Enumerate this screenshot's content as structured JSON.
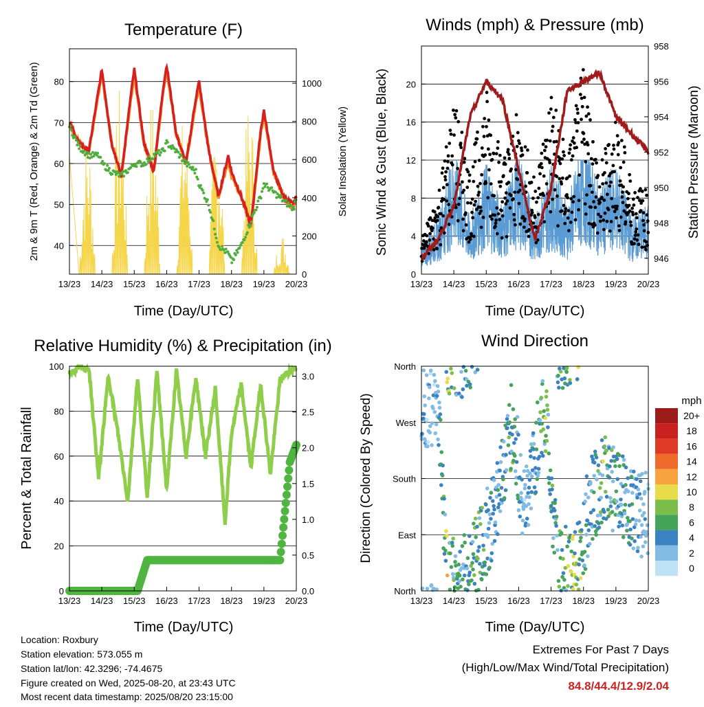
{
  "colors": {
    "t2m": "#d62020",
    "t9m": "#f28c28",
    "td": "#4fad3e",
    "solar": "#f5d64a",
    "gust": "#000000",
    "wind": "#5a9bd4",
    "pressure": "#a01c1c",
    "rh": "#8fce4a",
    "precip": "#4fb540",
    "extremes": "#cc2222"
  },
  "x_ticks": [
    "13/23",
    "14/23",
    "15/23",
    "16/23",
    "17/23",
    "18/23",
    "19/23",
    "20/23"
  ],
  "x_axis_title": "Time (Day/UTC)",
  "panels": {
    "temp": {
      "title": "Temperature (F)",
      "ylabel_left": "2m & 9m T (Red, Orange) & 2m Td (Green)",
      "ylabel_right": "Solar Insolation (Yellow)",
      "left_ticks": [
        "40",
        "50",
        "60",
        "70",
        "80"
      ],
      "right_ticks": [
        "0",
        "200",
        "400",
        "600",
        "800",
        "1000"
      ]
    },
    "wind": {
      "title": "Winds (mph) & Pressure (mb)",
      "ylabel_left": "Sonic Wind & Gust (Blue, Black)",
      "ylabel_right": "Station Pressure (Maroon)",
      "left_ticks": [
        "0",
        "4",
        "8",
        "12",
        "16",
        "20"
      ],
      "right_ticks": [
        "946",
        "948",
        "950",
        "952",
        "954",
        "956",
        "958"
      ]
    },
    "rh": {
      "title": "Relative Humidity (%) & Precipitation (in)",
      "ylabel_left": "Percent & Total Rainfall",
      "left_ticks": [
        "0",
        "20",
        "40",
        "60",
        "80",
        "100"
      ],
      "right_ticks": [
        "0.0",
        "0.5",
        "1.0",
        "1.5",
        "2.0",
        "2.5",
        "3.0"
      ]
    },
    "dir": {
      "title": "Wind Direction",
      "ylabel_left": "Direction (Colored By Speed)",
      "left_ticks": [
        "North",
        "East",
        "South",
        "West",
        "North"
      ],
      "legend_title": "mph",
      "legend_labels": [
        "20+",
        "18",
        "16",
        "14",
        "12",
        "10",
        "8",
        "6",
        "4",
        "2",
        "0"
      ],
      "legend_colors": [
        "#9e1b1b",
        "#c8211f",
        "#de3b26",
        "#f06b2b",
        "#f9a340",
        "#e8dc4a",
        "#7bbf4a",
        "#45a45a",
        "#3b82c0",
        "#82bbe4",
        "#bfe3f6"
      ]
    }
  },
  "chart_data": [
    {
      "type": "line",
      "title": "Temperature (F)",
      "xlabel": "Time (Day/UTC)",
      "ylabel": "2m & 9m T (Red, Orange) & 2m Td (Green)",
      "ylabel_right": "Solar Insolation (Yellow)",
      "ylim": [
        33,
        88
      ],
      "y2lim": [
        0,
        1180
      ],
      "x": [
        13.0,
        13.3,
        13.6,
        13.9,
        14.0,
        14.3,
        14.6,
        14.9,
        15.0,
        15.3,
        15.6,
        15.9,
        16.0,
        16.3,
        16.6,
        16.9,
        17.0,
        17.3,
        17.6,
        17.9,
        18.0,
        18.3,
        18.6,
        18.9,
        19.0,
        19.3,
        19.6,
        19.9,
        20.0
      ],
      "series": [
        {
          "name": "2m T",
          "axis": "left",
          "values": [
            70,
            65,
            63,
            78,
            83,
            65,
            57,
            77,
            83,
            65,
            58,
            79,
            84,
            67,
            60,
            76,
            80,
            63,
            52,
            62,
            58,
            52,
            45,
            68,
            73,
            58,
            52,
            50,
            52
          ]
        },
        {
          "name": "9m T",
          "axis": "left",
          "values": [
            70,
            65,
            63,
            77,
            82,
            65,
            57,
            76,
            82,
            65,
            58,
            78,
            83,
            67,
            60,
            75,
            79,
            63,
            52,
            61,
            57,
            52,
            45,
            67,
            72,
            58,
            52,
            49,
            52
          ]
        },
        {
          "name": "2m Td",
          "axis": "left",
          "values": [
            69,
            64,
            62,
            62,
            60,
            58,
            57,
            59,
            60,
            60,
            62,
            63,
            65,
            63,
            60,
            58,
            55,
            50,
            40,
            38,
            36,
            40,
            46,
            52,
            55,
            53,
            51,
            49,
            51
          ]
        },
        {
          "name": "Solar Insolation",
          "axis": "right",
          "values": [
            600,
            0,
            900,
            800,
            0,
            0,
            1000,
            900,
            0,
            0,
            950,
            700,
            0,
            0,
            900,
            850,
            0,
            0,
            800,
            600,
            0,
            0,
            0,
            900,
            0,
            0,
            0,
            200,
            0
          ]
        }
      ]
    },
    {
      "type": "line",
      "title": "Winds (mph) & Pressure (mb)",
      "xlabel": "Time (Day/UTC)",
      "ylabel": "Sonic Wind & Gust (Blue, Black)",
      "ylabel_right": "Station Pressure (Maroon)",
      "ylim": [
        0,
        24
      ],
      "y2lim": [
        945.1,
        958.0
      ],
      "x": [
        13.0,
        13.5,
        14.0,
        14.5,
        15.0,
        15.5,
        16.0,
        16.5,
        17.0,
        17.5,
        18.0,
        18.5,
        19.0,
        19.5,
        20.0
      ],
      "series": [
        {
          "name": "Sonic Wind",
          "axis": "left",
          "values": [
            2,
            4,
            9,
            4,
            8,
            5,
            9,
            4,
            8,
            5,
            10,
            6,
            8,
            4,
            5
          ]
        },
        {
          "name": "Gust",
          "axis": "left",
          "values": [
            3,
            7,
            15,
            9,
            16,
            10,
            14,
            8,
            16,
            10,
            18,
            9,
            14,
            8,
            7
          ]
        },
        {
          "name": "Station Pressure",
          "axis": "right",
          "values": [
            946,
            947,
            949,
            954,
            956,
            955,
            951,
            947,
            950,
            955.5,
            956,
            956.5,
            954,
            953,
            952
          ]
        }
      ]
    },
    {
      "type": "line",
      "title": "Relative Humidity (%) & Precipitation (in)",
      "xlabel": "Time (Day/UTC)",
      "ylabel": "Percent & Total Rainfall",
      "ylim": [
        0,
        100
      ],
      "y2lim": [
        0,
        3.14
      ],
      "x": [
        13.0,
        13.3,
        13.6,
        13.9,
        14.2,
        14.5,
        14.8,
        15.1,
        15.4,
        15.7,
        16.0,
        16.3,
        16.6,
        16.9,
        17.2,
        17.5,
        17.8,
        18.0,
        18.3,
        18.6,
        18.9,
        19.2,
        19.5,
        19.8,
        20.0
      ],
      "series": [
        {
          "name": "Relative Humidity",
          "axis": "left",
          "values": [
            97,
            99,
            99,
            50,
            96,
            70,
            40,
            95,
            42,
            98,
            45,
            98,
            60,
            95,
            60,
            90,
            30,
            70,
            92,
            55,
            92,
            52,
            94,
            98,
            99
          ]
        },
        {
          "name": "Total Rainfall",
          "axis": "right",
          "values": [
            0,
            0,
            0,
            0,
            0,
            0,
            0,
            0,
            0.43,
            0.43,
            0.43,
            0.43,
            0.43,
            0.43,
            0.43,
            0.43,
            0.43,
            0.43,
            0.43,
            0.43,
            0.43,
            0.43,
            0.43,
            1.8,
            2.04
          ]
        }
      ]
    },
    {
      "type": "scatter",
      "title": "Wind Direction",
      "xlabel": "Time (Day/UTC)",
      "ylabel": "Direction (Colored By Speed)",
      "yticks": [
        "North",
        "East",
        "South",
        "West",
        "North"
      ],
      "legend_title": "mph",
      "x": [
        13.5,
        13.8,
        14.2,
        14.8,
        15.2,
        15.8,
        16.2,
        16.8,
        17.2,
        17.8,
        18.2,
        18.6,
        19.0,
        19.4,
        19.8
      ],
      "direction_deg": [
        300,
        20,
        10,
        60,
        120,
        270,
        120,
        300,
        30,
        40,
        140,
        180,
        160,
        140,
        120
      ],
      "speed": [
        3,
        10,
        5,
        8,
        4,
        7,
        3,
        8,
        6,
        10,
        4,
        8,
        6,
        5,
        3
      ]
    }
  ],
  "footer": {
    "location": "Location: Roxbury",
    "elevation": "Station elevation: 573.055 m",
    "latlon": "Station lat/lon: 42.3296; -74.4675",
    "created": "Figure created on Wed, 2025-08-20, at 23:43 UTC",
    "recent": "Most recent data timestamp: 2025/08/20 23:15:00",
    "extremes_title": "Extremes For Past 7 Days",
    "extremes_sub": "(High/Low/Max Wind/Total Precipitation)",
    "extremes_values": "84.8/44.4/12.9/2.04"
  }
}
